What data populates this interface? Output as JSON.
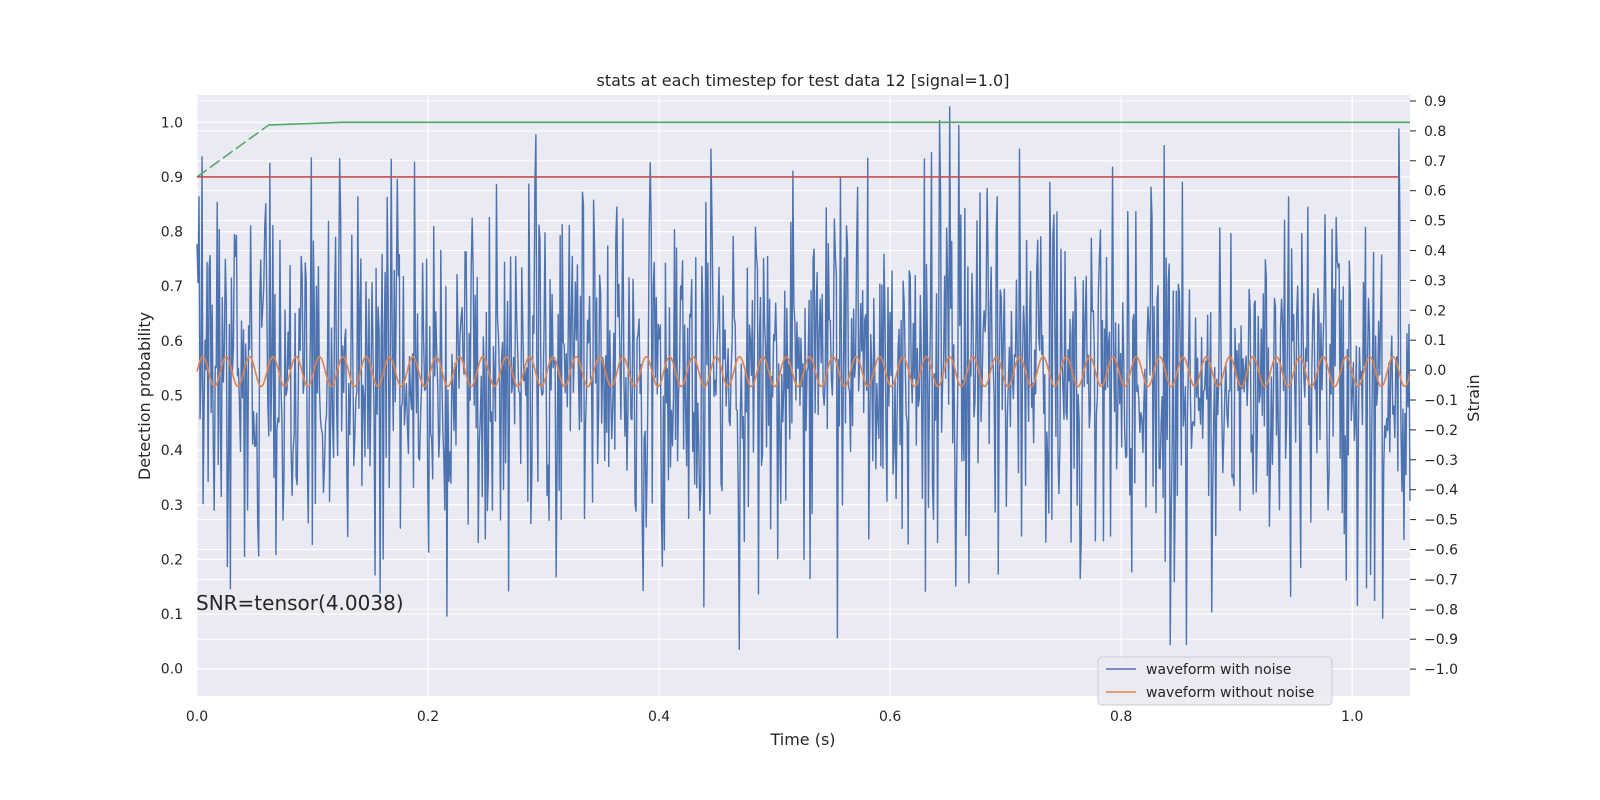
{
  "chart_data": {
    "type": "line",
    "title": "stats at each timestep for test data 12 [signal=1.0]",
    "xlabel": "Time (s)",
    "ylabel": "Detection probability",
    "ylabel_right": "Strain",
    "xlim": [
      0.0,
      1.05
    ],
    "ylim": [
      -0.05,
      1.05
    ],
    "ylim_right": [
      -1.09,
      0.92
    ],
    "x_ticks": [
      "0.0",
      "0.2",
      "0.4",
      "0.6",
      "0.8",
      "1.0"
    ],
    "x_tick_values": [
      0.0,
      0.2,
      0.4,
      0.6,
      0.8,
      1.0
    ],
    "y_ticks": [
      "0.0",
      "0.1",
      "0.2",
      "0.3",
      "0.4",
      "0.5",
      "0.6",
      "0.7",
      "0.8",
      "0.9",
      "1.0"
    ],
    "y_tick_values": [
      0.0,
      0.1,
      0.2,
      0.3,
      0.4,
      0.5,
      0.6,
      0.7,
      0.8,
      0.9,
      1.0
    ],
    "y_ticks_right": [
      "0.9",
      "0.8",
      "0.7",
      "0.6",
      "0.5",
      "0.4",
      "0.3",
      "0.2",
      "0.1",
      "0.0",
      "−0.1",
      "−0.2",
      "−0.3",
      "−0.4",
      "−0.5",
      "−0.6",
      "−0.7",
      "−0.8",
      "−0.9",
      "−1.0"
    ],
    "y_tick_values_right": [
      0.9,
      0.8,
      0.7,
      0.6,
      0.5,
      0.4,
      0.3,
      0.2,
      0.1,
      0.0,
      -0.1,
      -0.2,
      -0.3,
      -0.4,
      -0.5,
      -0.6,
      -0.7,
      -0.8,
      -0.9,
      -1.0
    ],
    "grid": true,
    "legend_position": "bottom-right",
    "annotation": "SNR=tensor(4.0038)",
    "series": [
      {
        "name": "waveform with noise",
        "axis": "right",
        "color": "#4c72b0",
        "generated": {
          "kind": "noise",
          "count": 1200,
          "x_start": 0.0,
          "x_end": 1.05,
          "std": 0.3,
          "offset": 0.0,
          "seed": 12
        }
      },
      {
        "name": "waveform without noise",
        "axis": "right",
        "color": "#dd8452",
        "generated": {
          "kind": "sine",
          "count": 1200,
          "x_start": 0.0,
          "x_end": 1.05,
          "amplitude": 0.05,
          "frequency_hz": 49.5,
          "offset": -0.005
        }
      },
      {
        "axis": "left",
        "color": "#55a868",
        "dashed_until_x": 0.06,
        "x": [
          0.0,
          0.062,
          0.125,
          1.05
        ],
        "y": [
          0.9,
          0.995,
          1.0,
          1.0
        ]
      },
      {
        "axis": "left",
        "color": "#c44e52",
        "x": [
          0.0,
          1.04
        ],
        "y": [
          0.9,
          0.9
        ]
      }
    ]
  }
}
